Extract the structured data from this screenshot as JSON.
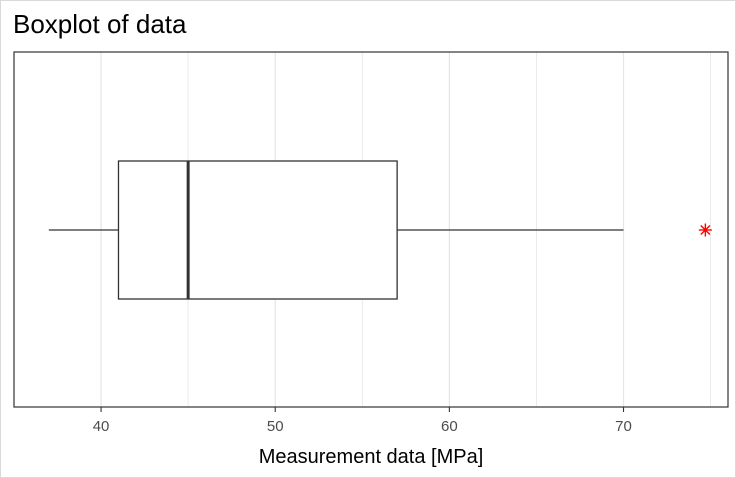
{
  "title": "Boxplot of data",
  "chart_data": {
    "type": "boxplot",
    "orientation": "horizontal",
    "title": "Boxplot of data",
    "xlabel": "Measurement data [MPa]",
    "ylabel": "",
    "xlim": [
      35,
      76
    ],
    "x_ticks": [
      40,
      50,
      60,
      70
    ],
    "x_tick_labels": [
      "40",
      "50",
      "60",
      "70"
    ],
    "grid": true,
    "box": {
      "whisker_low": 37,
      "q1": 41,
      "median": 45,
      "q3": 57,
      "whisker_high": 70
    },
    "outliers": [
      74.7
    ],
    "colors": {
      "box": "#333333",
      "grid": "#e6e6e6",
      "outlier": "#ff0000",
      "panel_border": "#333333"
    }
  }
}
